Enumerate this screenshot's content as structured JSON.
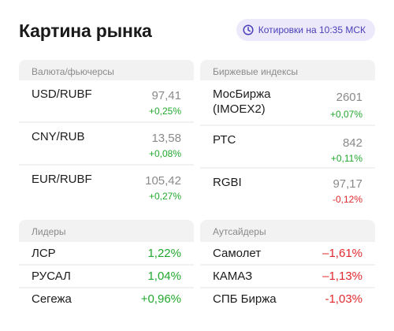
{
  "header": {
    "title": "Картина рынка",
    "badge": "Котировки на 10:35 МСК",
    "badge_icon": "clock-icon",
    "accent": "#4a3fb8"
  },
  "currencies": {
    "heading": "Валюта/фьючерсы",
    "rows": [
      {
        "name": "USD/RUBF",
        "price": "97,41",
        "change": "+0,25%"
      },
      {
        "name": "CNY/RUB",
        "price": "13,58",
        "change": "+0,08%"
      },
      {
        "name": "EUR/RUBF",
        "price": "105,42",
        "change": "+0,27%"
      }
    ]
  },
  "indices": {
    "heading": "Биржевые индексы",
    "rows": [
      {
        "name": "МосБиржа\n(IMOEX2)",
        "price": "2601",
        "change": "+0,07%"
      },
      {
        "name": "РТС",
        "price": "842",
        "change": "+0,11%"
      },
      {
        "name": "RGBI",
        "price": "97,17",
        "change": "-0,12%"
      }
    ]
  },
  "leaders": {
    "heading": "Лидеры",
    "rows": [
      {
        "name": "ЛСР",
        "value": "1,22%"
      },
      {
        "name": "РУСАЛ",
        "value": "1,04%"
      },
      {
        "name": "Сегежа",
        "value": "+0,96%"
      }
    ]
  },
  "outsiders": {
    "heading": "Аутсайдеры",
    "rows": [
      {
        "name": "Самолет",
        "value": "–1,61%"
      },
      {
        "name": "КАМАЗ",
        "value": "–1,13%"
      },
      {
        "name": "СПБ Биржа",
        "value": "-1,03%"
      }
    ]
  },
  "colors": {
    "positive": "#22a82e",
    "negative": "#e0282e"
  }
}
